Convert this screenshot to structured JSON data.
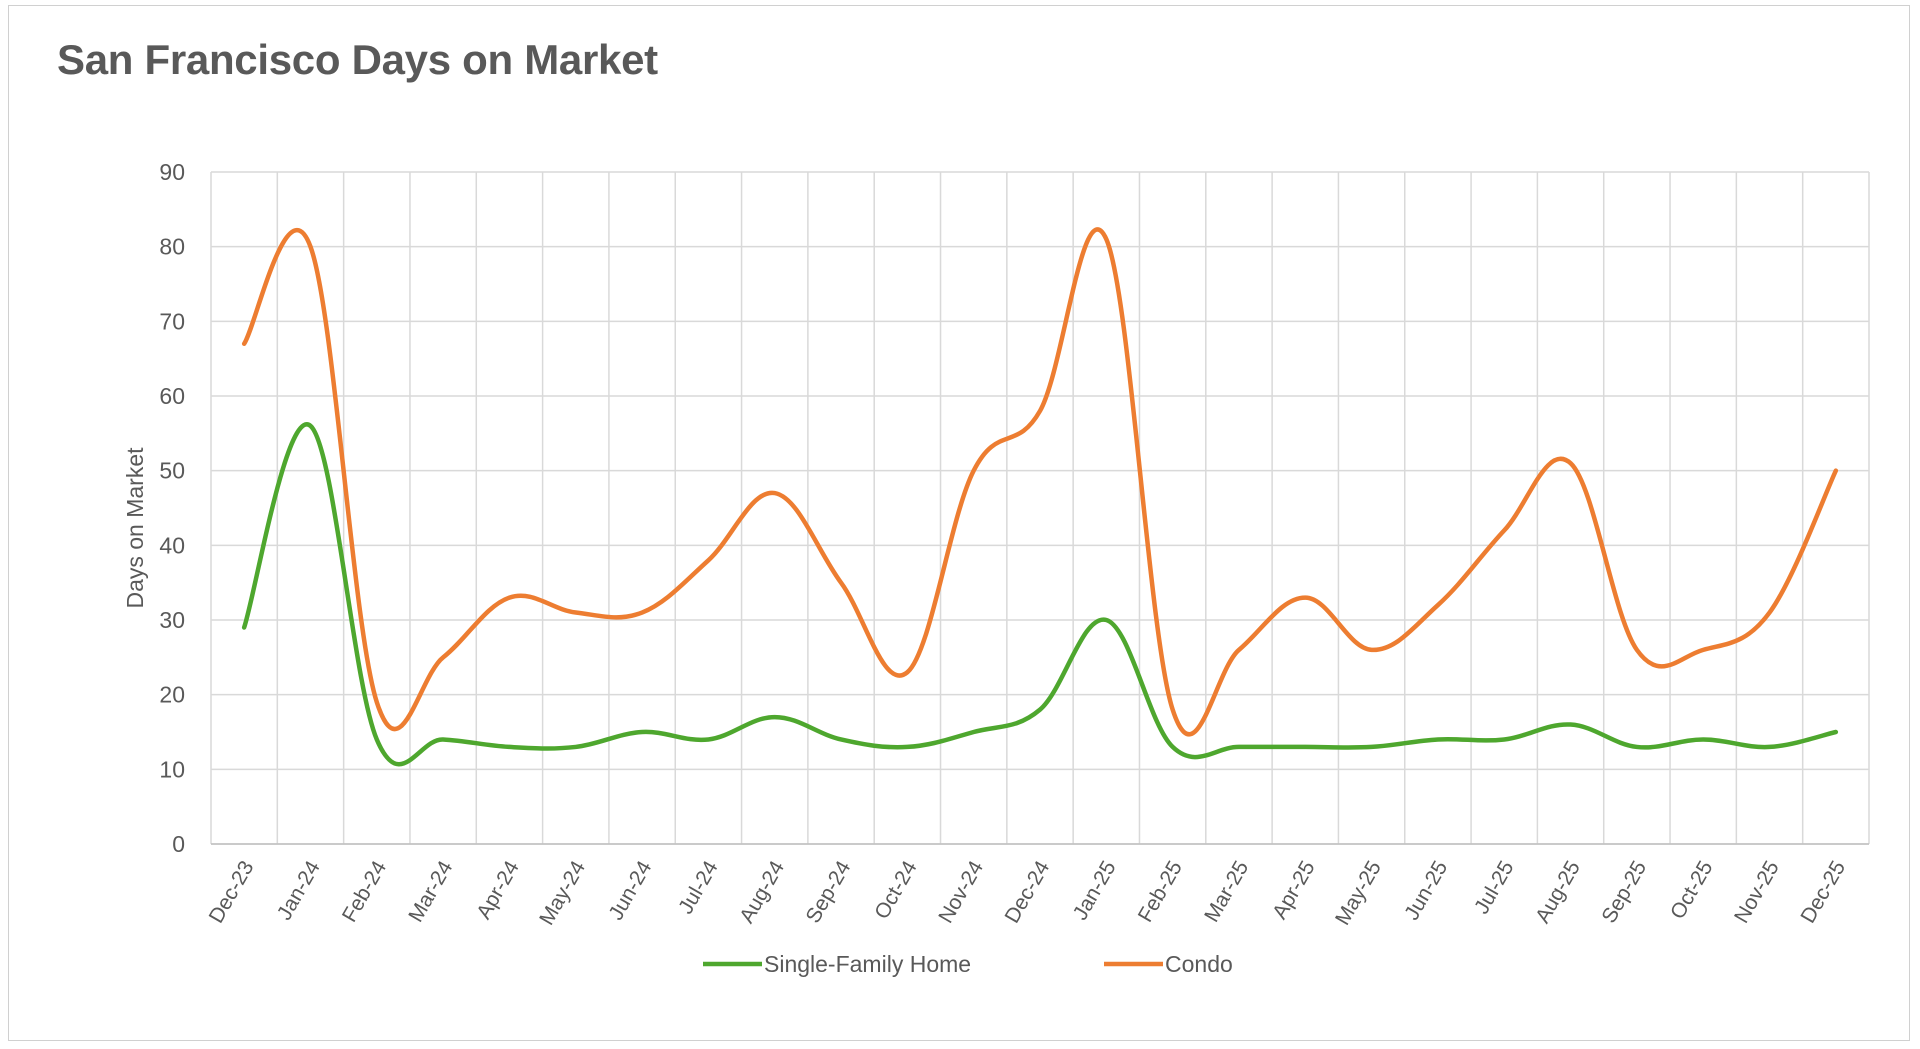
{
  "chart_data": {
    "type": "line",
    "title": "San Francisco Days on Market",
    "xlabel": "",
    "ylabel": "Days on Market",
    "ylim": [
      0,
      90
    ],
    "yticks": [
      0,
      10,
      20,
      30,
      40,
      50,
      60,
      70,
      80,
      90
    ],
    "grid": true,
    "legend_position": "bottom",
    "categories": [
      "Dec-23",
      "Jan-24",
      "Feb-24",
      "Mar-24",
      "Apr-24",
      "May-24",
      "Jun-24",
      "Jul-24",
      "Aug-24",
      "Sep-24",
      "Oct-24",
      "Nov-24",
      "Dec-24",
      "Jan-25",
      "Feb-25",
      "Mar-25",
      "Apr-25",
      "May-25",
      "Jun-25",
      "Jul-25",
      "Aug-25",
      "Sep-25",
      "Oct-25",
      "Nov-25",
      "Dec-25"
    ],
    "series": [
      {
        "name": "Single-Family Home",
        "color": "#4ea72e",
        "values": [
          29,
          56,
          14,
          14,
          13,
          13,
          15,
          14,
          17,
          14,
          13,
          15,
          18,
          30,
          13,
          13,
          13,
          13,
          14,
          14,
          16,
          13,
          14,
          13,
          15
        ]
      },
      {
        "name": "Condo",
        "color": "#ed7d31",
        "values": [
          67,
          80,
          19,
          25,
          33,
          31,
          31,
          38,
          47,
          35,
          23,
          50,
          58,
          81,
          18,
          26,
          33,
          26,
          32,
          42,
          51,
          26,
          26,
          31,
          50
        ]
      }
    ]
  }
}
